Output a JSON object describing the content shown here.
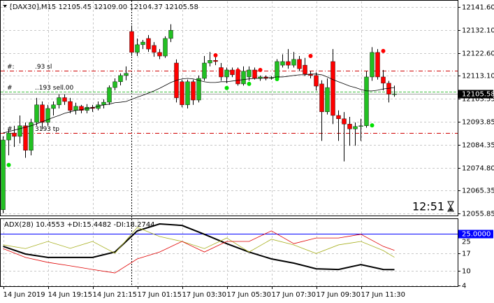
{
  "chart_data": [
    {
      "type": "candlestick",
      "title": "[DAX30],M15  12105.45 12109.00 12104.37 12105.58",
      "categories": [
        "14 Jun 2019",
        null,
        null,
        null,
        null,
        null,
        null,
        null,
        "14 Jun 19:15",
        null,
        null,
        null,
        null,
        null,
        null,
        null,
        "14 Jun 21:15",
        null,
        null,
        null,
        null,
        null,
        null,
        null,
        "17 Jun 01:15",
        null,
        null,
        null,
        null,
        null,
        null,
        null,
        "17 Jun 03:30",
        null,
        null,
        null,
        null,
        null,
        null,
        null,
        "17 Jun 05:30",
        null,
        null,
        null,
        null,
        null,
        null,
        null,
        "17 Jun 07:30",
        null,
        null,
        null,
        null,
        null,
        null,
        null,
        "17 Jun 09:30",
        null,
        null,
        null,
        null,
        null,
        null,
        null,
        "17 Jun 11:30",
        null,
        null,
        null,
        null,
        null,
        null
      ],
      "open": [
        12057.4,
        12086.4,
        12089.3,
        12087.9,
        12092.3,
        12082.1,
        12093.7,
        12101.0,
        12093.7,
        12099.5,
        12101.0,
        12104.0,
        12102.4,
        12098.7,
        12100.4,
        12098.7,
        12100.0,
        12099.5,
        12101.0,
        12102.1,
        12108.2,
        12110.6,
        12113.2,
        12131.5,
        12122.8,
        12126.0,
        12128.6,
        12125.7,
        12122.8,
        12121.3,
        12128.6,
        12118.4,
        12110.6,
        12101.0,
        12110.6,
        12103.0,
        12112.0,
        12118.4,
        12119.5,
        12116.5,
        12112.6,
        12115.5,
        12115.5,
        12109.7,
        12112.6,
        12115.5,
        12112.0,
        12112.6,
        12112.0,
        12112.3,
        12117.5,
        12119.0,
        12117.5,
        12119.9,
        12117.5,
        12113.8,
        12113.2,
        12109.7,
        12098.1,
        12119.0,
        12096.6,
        12095.2,
        12093.0,
        12091.0,
        12092.0,
        12092.3,
        12112.6,
        12122.8,
        12112.6,
        12110.0,
        12105.45
      ],
      "high": [
        12087.9,
        12090.8,
        12092.3,
        12096.6,
        12093.7,
        12095.2,
        12103.9,
        12102.4,
        12101.0,
        12102.4,
        12105.3,
        12105.3,
        12103.9,
        12101.9,
        12101.0,
        12101.3,
        12101.0,
        12102.4,
        12103.3,
        12109.1,
        12112.0,
        12114.1,
        12117.0,
        12134.0,
        12128.6,
        12128.0,
        12130.0,
        12127.1,
        12124.2,
        12129.5,
        12134.5,
        12119.9,
        12111.5,
        12111.5,
        12111.5,
        12113.2,
        12121.3,
        12123.0,
        12121.3,
        12118.4,
        12116.5,
        12116.5,
        12116.5,
        12117.0,
        12117.0,
        12116.5,
        12113.2,
        12113.2,
        12113.0,
        12120.0,
        12122.0,
        12124.2,
        12123.0,
        12121.3,
        12120.5,
        12115.0,
        12114.5,
        12111.2,
        12112.0,
        12124.2,
        12098.7,
        12098.0,
        12096.0,
        12093.7,
        12095.2,
        12115.0,
        12125.0,
        12124.2,
        12115.5,
        12111.0,
        12109.0
      ],
      "low": [
        12056.0,
        12080.0,
        12083.5,
        12085.0,
        12079.0,
        12080.0,
        12092.3,
        12090.8,
        12092.3,
        12096.6,
        12099.5,
        12101.0,
        12097.5,
        12097.0,
        12097.5,
        12097.5,
        12098.1,
        12098.7,
        12099.5,
        12101.0,
        12107.0,
        12109.1,
        12111.2,
        12121.3,
        12121.3,
        12124.2,
        12123.0,
        12121.0,
        12120.0,
        12120.5,
        12127.1,
        12102.0,
        12100.0,
        12099.5,
        12101.0,
        12102.0,
        12111.0,
        12117.0,
        12117.5,
        12111.0,
        12110.0,
        12112.5,
        12109.0,
        12109.0,
        12111.0,
        12111.5,
        12111.0,
        12111.2,
        12111.5,
        12111.5,
        12116.5,
        12116.0,
        12116.5,
        12115.0,
        12113.0,
        12112.0,
        12107.0,
        12086.0,
        12097.0,
        12093.0,
        12086.0,
        12077.5,
        12084.0,
        12084.0,
        12086.0,
        12091.5,
        12111.0,
        12111.5,
        12107.0,
        12102.0,
        12104.37
      ],
      "close": [
        12086.4,
        12089.3,
        12087.9,
        12092.3,
        12082.1,
        12093.7,
        12101.0,
        12093.7,
        12099.5,
        12101.0,
        12104.0,
        12102.4,
        12098.7,
        12100.4,
        12098.7,
        12100.0,
        12099.5,
        12101.0,
        12102.1,
        12108.2,
        12110.6,
        12113.2,
        12114.1,
        12122.8,
        12126.0,
        12127.1,
        12124.2,
        12122.8,
        12121.3,
        12128.6,
        12132.0,
        12103.9,
        12101.0,
        12110.6,
        12103.0,
        12112.0,
        12118.4,
        12119.5,
        12119.0,
        12112.6,
        12115.5,
        12113.5,
        12109.7,
        12115.0,
        12115.5,
        12112.0,
        12112.6,
        12112.0,
        12112.3,
        12119.0,
        12119.0,
        12117.5,
        12119.9,
        12116.0,
        12113.8,
        12113.2,
        12108.8,
        12098.1,
        12108.2,
        12096.6,
        12095.2,
        12093.0,
        12091.0,
        12092.0,
        12092.3,
        12112.6,
        12122.8,
        12112.6,
        12110.0,
        12105.45,
        12105.58
      ],
      "up_color": "#22c022",
      "down_color": "#ff0000",
      "ma": {
        "color": "#000000",
        "values": [
          12089.3,
          12089.9,
          12090.5,
          12091.1,
          12091.7,
          12092.3,
          12093.1,
          12094.0,
          12094.9,
          12095.8,
          12096.6,
          12097.5,
          12098.1,
          12098.7,
          12099.0,
          12099.5,
          12099.8,
          12100.4,
          12101.0,
          12101.3,
          12101.9,
          12102.1,
          12102.4,
          12103.3,
          12104.2,
          12105.0,
          12105.9,
          12106.8,
          12107.9,
          12109.1,
          12110.3,
          12111.2,
          12111.8,
          12112.0,
          12111.8,
          12111.2,
          12110.6,
          12110.3,
          12110.3,
          12110.6,
          12110.6,
          12110.9,
          12111.2,
          12111.5,
          12111.8,
          12112.0,
          12112.0,
          12112.3,
          12112.3,
          12112.6,
          12112.6,
          12112.9,
          12113.2,
          12113.5,
          12113.5,
          12113.8,
          12113.8,
          12113.5,
          12112.6,
          12111.5,
          12110.6,
          12109.7,
          12108.8,
          12108.2,
          12107.4,
          12106.8,
          12106.8,
          12107.1,
          12107.6,
          12107.9,
          12108.2
        ]
      },
      "sell_dots": {
        "color": "#ff0000",
        "x": [
          38,
          42,
          46,
          55,
          68
        ],
        "values": [
          12121.6,
          12115.2,
          12115.5,
          12121.3,
          12123.4
        ]
      },
      "buy_dots": {
        "color": "#00e000",
        "x": [
          1,
          40,
          44,
          49,
          66
        ],
        "values": [
          12076.0,
          12108.0,
          12109.7,
          12111.7,
          12092.5
        ]
      },
      "levels": [
        {
          "value": 12115.2,
          "color": "#d00000",
          "texts": [
            "#:",
            ".93 sl"
          ]
        },
        {
          "value": 12106.5,
          "color": "#40c040",
          "texts": [
            "#",
            "..193 sell",
            "..00"
          ]
        },
        {
          "value": 12089.3,
          "color": "#d00000",
          "texts": [
            "#",
            "3193 tp"
          ]
        }
      ],
      "current_price": 12105.58,
      "clock": "12:51",
      "ylim": [
        12055.0,
        12144.0
      ],
      "yticks": [
        {
          "value": 12141.6,
          "label": "12141.60"
        },
        {
          "value": 12132.1,
          "label": "12132.10"
        },
        {
          "value": 12122.6,
          "label": "12122.60"
        },
        {
          "value": 12113.1,
          "label": "12113.10"
        },
        12103.55,
        12093.85,
        12084.35,
        {
          "value": 12074.8,
          "label": "12074.80"
        },
        12065.35,
        12055.85
      ],
      "grid": true
    },
    {
      "type": "line",
      "label": "ADX(28) 10.4553 +DI:15.4482 -DI:18.2744",
      "x": [
        0,
        4,
        8,
        12,
        16,
        20,
        24,
        28,
        32,
        36,
        40,
        44,
        48,
        52,
        56,
        60,
        64,
        68,
        70
      ],
      "series": [
        {
          "color": "#000000",
          "width": 2,
          "values": [
            19.9,
            16.8,
            15.4,
            15.4,
            15.4,
            17.6,
            26.2,
            29.0,
            28.4,
            24.8,
            21.0,
            17.6,
            14.8,
            13.1,
            10.8,
            10.5,
            12.5,
            10.5,
            10.4553
          ]
        },
        {
          "color": "#a8b020",
          "width": 0.8,
          "values": [
            20.5,
            19.0,
            21.9,
            19.1,
            21.9,
            17.1,
            27.6,
            23.9,
            21.9,
            19.0,
            23.3,
            17.6,
            22.8,
            20.5,
            17.0,
            20.5,
            21.9,
            18.2,
            15.4482
          ]
        },
        {
          "color": "#e00000",
          "width": 0.8,
          "values": [
            19.0,
            15.4,
            13.4,
            12.0,
            10.5,
            9.1,
            14.8,
            17.6,
            21.9,
            17.6,
            21.9,
            21.9,
            26.2,
            21.0,
            23.3,
            23.3,
            24.8,
            19.9,
            18.2744
          ]
        }
      ],
      "level": {
        "value": 25,
        "label": "25.0000",
        "color": "#0000ff"
      },
      "ylim": [
        4,
        31
      ],
      "yticks": [
        4,
        10,
        17,
        25
      ]
    }
  ]
}
